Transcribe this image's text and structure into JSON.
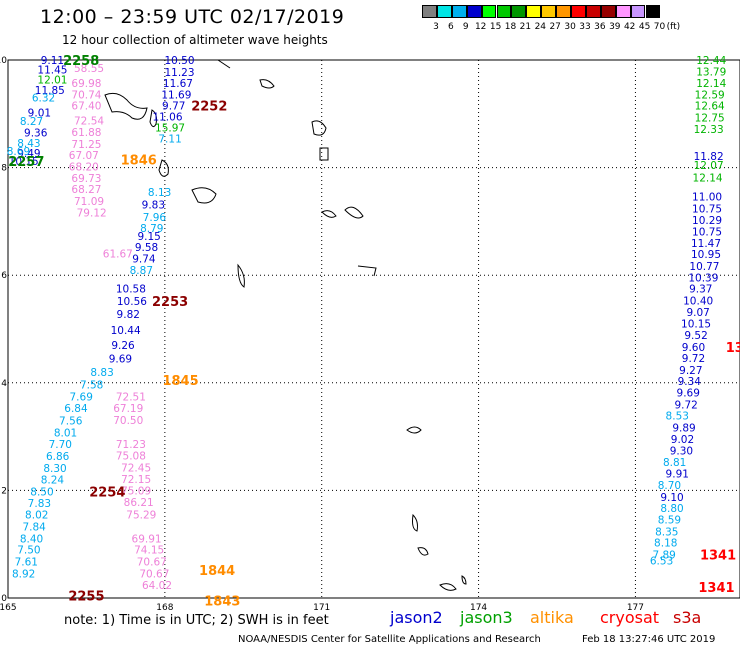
{
  "chart_data": {
    "type": "scatter",
    "title": "12:00 – 23:59 UTC 02/17/2019",
    "subtitle": "12 hour collection of altimeter wave heights",
    "xlim": [
      165,
      179
    ],
    "ylim": [
      0,
      10
    ],
    "x_ticks": [
      "165",
      "168",
      "171",
      "174",
      "177"
    ],
    "y_ticks": [
      "0",
      "2",
      "4",
      "6",
      "8",
      "10"
    ],
    "grid": true,
    "colorbar": {
      "unit": "(ft)",
      "labels": [
        "3",
        "6",
        "9",
        "12",
        "15",
        "18",
        "21",
        "24",
        "27",
        "30",
        "33",
        "36",
        "39",
        "42",
        "45",
        "70"
      ],
      "colors": [
        "#7f7f7f",
        "#00e5e5",
        "#00b0ee",
        "#0000cd",
        "#00ff00",
        "#00c800",
        "#009600",
        "#ffff00",
        "#ffc800",
        "#ff9600",
        "#ff0000",
        "#c80000",
        "#960000",
        "#ff96ff",
        "#c896ff",
        "#000000"
      ]
    },
    "series": [
      {
        "name": "jason2",
        "color": "#0000cc",
        "points": [
          {
            "x": 165.85,
            "y": 10.0,
            "v": "9.11"
          },
          {
            "x": 165.85,
            "y": 9.82,
            "v": "11.45"
          },
          {
            "x": 165.8,
            "y": 9.44,
            "v": "11.85"
          },
          {
            "x": 165.6,
            "y": 9.02,
            "v": "9.01"
          },
          {
            "x": 165.53,
            "y": 8.65,
            "v": "9.36"
          },
          {
            "x": 165.4,
            "y": 8.27,
            "v": "9.49"
          },
          {
            "x": 165.3,
            "y": 8.12,
            "v": "10.15"
          },
          {
            "x": 168.28,
            "y": 10.0,
            "v": "10.50"
          },
          {
            "x": 168.28,
            "y": 9.78,
            "v": "11.23"
          },
          {
            "x": 168.25,
            "y": 9.57,
            "v": "11.67"
          },
          {
            "x": 168.22,
            "y": 9.36,
            "v": "11.69"
          },
          {
            "x": 168.17,
            "y": 9.15,
            "v": "9.77"
          },
          {
            "x": 168.05,
            "y": 8.95,
            "v": "11.06"
          },
          {
            "x": 167.78,
            "y": 7.31,
            "v": "9.83"
          },
          {
            "x": 167.7,
            "y": 6.73,
            "v": "9.15"
          },
          {
            "x": 167.65,
            "y": 6.52,
            "v": "9.58"
          },
          {
            "x": 167.6,
            "y": 6.31,
            "v": "9.74"
          },
          {
            "x": 167.35,
            "y": 5.75,
            "v": "10.58"
          },
          {
            "x": 167.37,
            "y": 5.52,
            "v": "10.56"
          },
          {
            "x": 167.3,
            "y": 5.28,
            "v": "9.82"
          },
          {
            "x": 167.25,
            "y": 4.98,
            "v": "10.44"
          },
          {
            "x": 167.2,
            "y": 4.7,
            "v": "9.26"
          },
          {
            "x": 167.15,
            "y": 4.45,
            "v": "9.69"
          },
          {
            "x": 178.4,
            "y": 8.22,
            "v": "11.82"
          },
          {
            "x": 178.37,
            "y": 7.46,
            "v": "11.00"
          },
          {
            "x": 178.37,
            "y": 7.24,
            "v": "10.75"
          },
          {
            "x": 178.37,
            "y": 7.03,
            "v": "10.29"
          },
          {
            "x": 178.37,
            "y": 6.81,
            "v": "10.75"
          },
          {
            "x": 178.35,
            "y": 6.6,
            "v": "11.47"
          },
          {
            "x": 178.35,
            "y": 6.39,
            "v": "10.95"
          },
          {
            "x": 178.32,
            "y": 6.17,
            "v": "10.77"
          },
          {
            "x": 178.3,
            "y": 5.96,
            "v": "10.39"
          },
          {
            "x": 178.25,
            "y": 5.75,
            "v": "9.37"
          },
          {
            "x": 178.2,
            "y": 5.53,
            "v": "10.40"
          },
          {
            "x": 178.2,
            "y": 5.32,
            "v": "9.07"
          },
          {
            "x": 178.16,
            "y": 5.1,
            "v": "10.15"
          },
          {
            "x": 178.16,
            "y": 4.89,
            "v": "9.52"
          },
          {
            "x": 178.11,
            "y": 4.67,
            "v": "9.60"
          },
          {
            "x": 178.11,
            "y": 4.46,
            "v": "9.72"
          },
          {
            "x": 178.06,
            "y": 4.24,
            "v": "9.27"
          },
          {
            "x": 178.03,
            "y": 4.03,
            "v": "9.34"
          },
          {
            "x": 178.01,
            "y": 3.82,
            "v": "9.69"
          },
          {
            "x": 177.97,
            "y": 3.6,
            "v": "9.72"
          },
          {
            "x": 177.93,
            "y": 3.17,
            "v": "9.89"
          },
          {
            "x": 177.9,
            "y": 2.96,
            "v": "9.02"
          },
          {
            "x": 177.88,
            "y": 2.74,
            "v": "9.30"
          },
          {
            "x": 177.8,
            "y": 2.31,
            "v": "9.91"
          },
          {
            "x": 177.7,
            "y": 1.88,
            "v": "9.10"
          }
        ]
      },
      {
        "name": "jason3",
        "color": "#00b400",
        "points": [
          {
            "x": 165.85,
            "y": 9.64,
            "v": "12.01"
          },
          {
            "x": 168.1,
            "y": 8.75,
            "v": "15.97"
          },
          {
            "x": 178.45,
            "y": 10.0,
            "v": "12.44"
          },
          {
            "x": 178.45,
            "y": 9.79,
            "v": "13.79"
          },
          {
            "x": 178.45,
            "y": 9.57,
            "v": "12.14"
          },
          {
            "x": 178.42,
            "y": 9.36,
            "v": "12.59"
          },
          {
            "x": 178.42,
            "y": 9.15,
            "v": "12.64"
          },
          {
            "x": 178.42,
            "y": 8.93,
            "v": "12.75"
          },
          {
            "x": 178.4,
            "y": 8.72,
            "v": "12.33"
          },
          {
            "x": 178.4,
            "y": 8.05,
            "v": "12.07"
          },
          {
            "x": 178.38,
            "y": 7.82,
            "v": "12.14"
          }
        ]
      },
      {
        "name": "jason2-cyan",
        "color": "#00aaee",
        "points": [
          {
            "x": 165.68,
            "y": 9.3,
            "v": "6.32"
          },
          {
            "x": 165.45,
            "y": 8.87,
            "v": "8.27"
          },
          {
            "x": 165.4,
            "y": 8.46,
            "v": "8.43"
          },
          {
            "x": 165.2,
            "y": 8.31,
            "v": "8.69"
          },
          {
            "x": 168.1,
            "y": 8.54,
            "v": "7.11"
          },
          {
            "x": 167.9,
            "y": 7.55,
            "v": "8.13"
          },
          {
            "x": 167.8,
            "y": 7.08,
            "v": "7.96"
          },
          {
            "x": 167.75,
            "y": 6.88,
            "v": "8.79"
          },
          {
            "x": 167.55,
            "y": 6.1,
            "v": "8.87"
          },
          {
            "x": 166.8,
            "y": 4.2,
            "v": "8.83"
          },
          {
            "x": 166.6,
            "y": 3.97,
            "v": "7.58"
          },
          {
            "x": 166.4,
            "y": 3.75,
            "v": "7.69"
          },
          {
            "x": 166.3,
            "y": 3.53,
            "v": "6.84"
          },
          {
            "x": 166.2,
            "y": 3.3,
            "v": "7.56"
          },
          {
            "x": 166.1,
            "y": 3.08,
            "v": "8.01"
          },
          {
            "x": 166.0,
            "y": 2.86,
            "v": "7.70"
          },
          {
            "x": 165.95,
            "y": 2.64,
            "v": "6.86"
          },
          {
            "x": 165.9,
            "y": 2.42,
            "v": "8.30"
          },
          {
            "x": 165.85,
            "y": 2.2,
            "v": "8.24"
          },
          {
            "x": 165.65,
            "y": 1.98,
            "v": "8.50"
          },
          {
            "x": 165.6,
            "y": 1.77,
            "v": "7.83"
          },
          {
            "x": 165.55,
            "y": 1.55,
            "v": "8.02"
          },
          {
            "x": 165.5,
            "y": 1.33,
            "v": "7.84"
          },
          {
            "x": 165.45,
            "y": 1.11,
            "v": "8.40"
          },
          {
            "x": 165.4,
            "y": 0.9,
            "v": "7.50"
          },
          {
            "x": 165.35,
            "y": 0.68,
            "v": "7.61"
          },
          {
            "x": 165.3,
            "y": 0.46,
            "v": "8.92"
          },
          {
            "x": 177.7,
            "y": 1.67,
            "v": "8.80"
          },
          {
            "x": 177.65,
            "y": 1.46,
            "v": "8.59"
          },
          {
            "x": 177.6,
            "y": 1.24,
            "v": "8.35"
          },
          {
            "x": 177.58,
            "y": 1.03,
            "v": "8.18"
          },
          {
            "x": 177.55,
            "y": 0.81,
            "v": "7.89"
          },
          {
            "x": 177.5,
            "y": 0.7,
            "v": "6.53"
          },
          {
            "x": 177.8,
            "y": 3.39,
            "v": "8.53"
          },
          {
            "x": 177.75,
            "y": 2.53,
            "v": "8.81"
          },
          {
            "x": 177.65,
            "y": 2.1,
            "v": "8.70"
          }
        ]
      },
      {
        "name": "cryosat-pink",
        "color": "#ee80d8",
        "points": [
          {
            "x": 166.55,
            "y": 9.85,
            "v": "58.55"
          },
          {
            "x": 166.5,
            "y": 9.57,
            "v": "69.98"
          },
          {
            "x": 166.5,
            "y": 9.36,
            "v": "70.74"
          },
          {
            "x": 166.5,
            "y": 9.15,
            "v": "67.40"
          },
          {
            "x": 166.55,
            "y": 8.88,
            "v": "72.54"
          },
          {
            "x": 166.5,
            "y": 8.66,
            "v": "61.88"
          },
          {
            "x": 166.5,
            "y": 8.44,
            "v": "71.25"
          },
          {
            "x": 166.45,
            "y": 8.23,
            "v": "67.07"
          },
          {
            "x": 166.45,
            "y": 8.02,
            "v": "68.20"
          },
          {
            "x": 166.5,
            "y": 7.81,
            "v": "69.73"
          },
          {
            "x": 166.5,
            "y": 7.6,
            "v": "68.27"
          },
          {
            "x": 166.55,
            "y": 7.38,
            "v": "71.09"
          },
          {
            "x": 166.6,
            "y": 7.17,
            "v": "79.12"
          },
          {
            "x": 167.1,
            "y": 6.4,
            "v": "61.67"
          },
          {
            "x": 167.35,
            "y": 3.75,
            "v": "72.51"
          },
          {
            "x": 167.3,
            "y": 3.53,
            "v": "67.19"
          },
          {
            "x": 167.3,
            "y": 3.31,
            "v": "70.50"
          },
          {
            "x": 167.35,
            "y": 2.86,
            "v": "71.23"
          },
          {
            "x": 167.35,
            "y": 2.65,
            "v": "75.08"
          },
          {
            "x": 167.45,
            "y": 2.43,
            "v": "72.45"
          },
          {
            "x": 167.45,
            "y": 2.21,
            "v": "72.15"
          },
          {
            "x": 167.45,
            "y": 2.0,
            "v": "75.09"
          },
          {
            "x": 167.5,
            "y": 1.78,
            "v": "86.21"
          },
          {
            "x": 167.55,
            "y": 1.55,
            "v": "75.29"
          },
          {
            "x": 167.65,
            "y": 1.11,
            "v": "69.91"
          },
          {
            "x": 167.7,
            "y": 0.9,
            "v": "74.15"
          },
          {
            "x": 167.75,
            "y": 0.68,
            "v": "70.67"
          },
          {
            "x": 167.8,
            "y": 0.46,
            "v": "70.67"
          },
          {
            "x": 167.85,
            "y": 0.24,
            "v": "64.02"
          }
        ]
      }
    ],
    "orbit_labels": [
      {
        "text": "2258",
        "x": 166.4,
        "y": 10.0,
        "color": "#008000"
      },
      {
        "text": "2252",
        "x": 168.85,
        "y": 9.15,
        "color": "#8b0000"
      },
      {
        "text": "2257",
        "x": 165.35,
        "y": 8.12,
        "color": "#008000"
      },
      {
        "text": "1846",
        "x": 167.5,
        "y": 8.15,
        "color": "#ff8c00"
      },
      {
        "text": "2253",
        "x": 168.1,
        "y": 5.52,
        "color": "#8b0000"
      },
      {
        "text": "1845",
        "x": 168.3,
        "y": 4.05,
        "color": "#ff8c00"
      },
      {
        "text": "2254",
        "x": 166.9,
        "y": 1.98,
        "color": "#8b0000"
      },
      {
        "text": "1844",
        "x": 169.0,
        "y": 0.52,
        "color": "#ff8c00"
      },
      {
        "text": "2255",
        "x": 166.5,
        "y": 0.05,
        "color": "#8b0000"
      },
      {
        "text": "1843",
        "x": 169.1,
        "y": -0.05,
        "color": "#ff8c00"
      },
      {
        "text": "1341",
        "x": 178.58,
        "y": 0.81,
        "color": "#ff0000"
      },
      {
        "text": "1341",
        "x": 178.55,
        "y": 0.2,
        "color": "#ff0000"
      },
      {
        "text": "13",
        "x": 178.9,
        "y": 4.67,
        "color": "#ff0000"
      }
    ]
  },
  "footer": {
    "note": "note: 1) Time is in UTC; 2) SWH is in feet",
    "credit": "NOAA/NESDIS Center for Satellite Applications and Research",
    "timestamp": "Feb 18 13:27:46 UTC 2019",
    "sat_jason2": "jason2",
    "sat_jason3": "jason3",
    "sat_altika": "altika",
    "sat_cryosat": "cryosat",
    "sat_s3a": "s3a"
  }
}
